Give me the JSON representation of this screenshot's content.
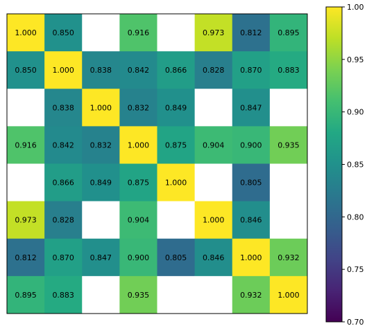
{
  "chart_data": {
    "type": "heatmap",
    "title": "",
    "xlabel": "",
    "ylabel": "",
    "rows": 8,
    "cols": 8,
    "missing_color": "#ffffff",
    "colormap": "viridis",
    "values": [
      [
        1.0,
        0.85,
        null,
        0.916,
        null,
        0.973,
        0.812,
        0.895
      ],
      [
        0.85,
        1.0,
        0.838,
        0.842,
        0.866,
        0.828,
        0.87,
        0.883
      ],
      [
        null,
        0.838,
        1.0,
        0.832,
        0.849,
        null,
        0.847,
        null
      ],
      [
        0.916,
        0.842,
        0.832,
        1.0,
        0.875,
        0.904,
        0.9,
        0.935
      ],
      [
        null,
        0.866,
        0.849,
        0.875,
        1.0,
        null,
        0.805,
        null
      ],
      [
        0.973,
        0.828,
        null,
        0.904,
        null,
        1.0,
        0.846,
        null
      ],
      [
        0.812,
        0.87,
        0.847,
        0.9,
        0.805,
        0.846,
        1.0,
        0.932
      ],
      [
        0.895,
        0.883,
        null,
        0.935,
        null,
        null,
        0.932,
        1.0
      ]
    ],
    "cell_labels": [
      [
        "1.000",
        "0.850",
        "",
        "0.916",
        "",
        "0.973",
        "0.812",
        "0.895"
      ],
      [
        "0.850",
        "1.000",
        "0.838",
        "0.842",
        "0.866",
        "0.828",
        "0.870",
        "0.883"
      ],
      [
        "",
        "0.838",
        "1.000",
        "0.832",
        "0.849",
        "",
        "0.847",
        ""
      ],
      [
        "0.916",
        "0.842",
        "0.832",
        "1.000",
        "0.875",
        "0.904",
        "0.900",
        "0.935"
      ],
      [
        "",
        "0.866",
        "0.849",
        "0.875",
        "1.000",
        "",
        "0.805",
        ""
      ],
      [
        "0.973",
        "0.828",
        "",
        "0.904",
        "",
        "1.000",
        "0.846",
        ""
      ],
      [
        "0.812",
        "0.870",
        "0.847",
        "0.900",
        "0.805",
        "0.846",
        "1.000",
        "0.932"
      ],
      [
        "0.895",
        "0.883",
        "",
        "0.935",
        "",
        "",
        "0.932",
        "1.000"
      ]
    ],
    "colorbar": {
      "range": [
        0.7,
        1.0
      ],
      "ticks": [
        0.7,
        0.75,
        0.8,
        0.85,
        0.9,
        0.95,
        1.0
      ],
      "tick_labels": [
        "0.70",
        "0.75",
        "0.80",
        "0.85",
        "0.90",
        "0.95",
        "1.00"
      ]
    }
  }
}
